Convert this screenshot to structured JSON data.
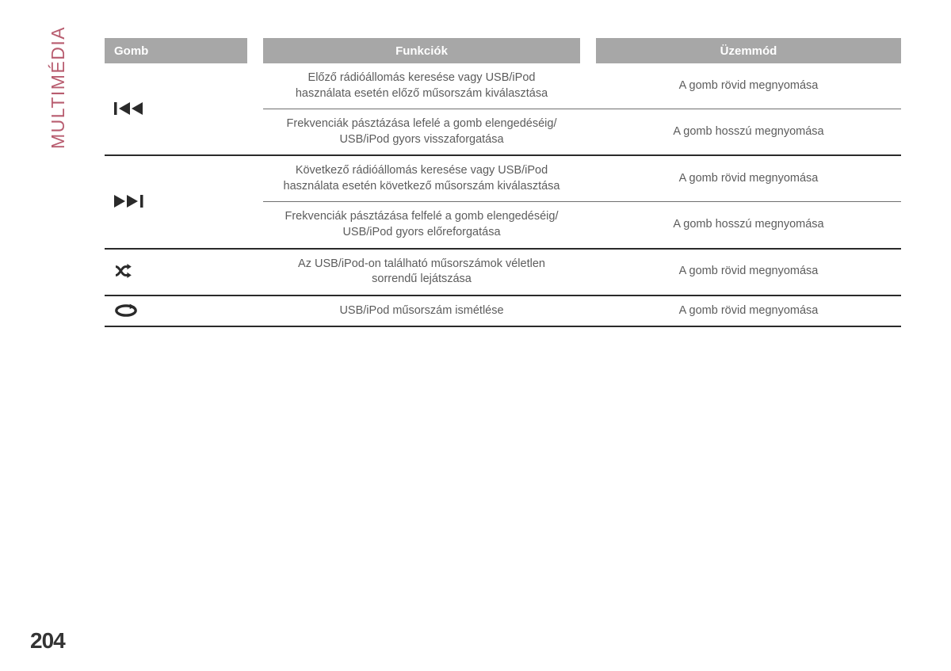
{
  "section_label": "MULTIMÉDIA",
  "page_number": "204",
  "colors": {
    "header_bg": "#a7a7a7",
    "header_text": "#ffffff",
    "section_label": "#b85c6f",
    "body_text": "#5c5c5c",
    "border_thick": "#2a2a2a",
    "border_thin": "#6f6f6f",
    "background": "#ffffff"
  },
  "headers": {
    "col1": "Gomb",
    "col2": "Funkciók",
    "col3": "Üzemmód"
  },
  "rows": [
    {
      "icon": "prev",
      "icon_rowspan": 2,
      "func_l1": "Előző rádióállomás keresése vagy USB/iPod",
      "func_l2": "használata esetén előző műsorszám kiválasztása",
      "mode": "A gomb rövid megnyomása",
      "sep_after": "thin"
    },
    {
      "icon": null,
      "func_l1": "Frekvenciák pásztázása lefelé a gomb elengedéséig/",
      "func_l2": "USB/iPod gyors visszaforgatása",
      "mode": "A gomb hosszú megnyomása",
      "sep_after": "thick"
    },
    {
      "icon": "next",
      "icon_rowspan": 2,
      "func_l1": "Következő rádióállomás keresése vagy USB/iPod",
      "func_l2": "használata esetén következő műsorszám kiválasztása",
      "mode": "A gomb rövid megnyomása",
      "sep_after": "thin"
    },
    {
      "icon": null,
      "func_l1": "Frekvenciák pásztázása felfelé a gomb elengedéséig/",
      "func_l2": "USB/iPod gyors előreforgatása",
      "mode": "A gomb hosszú megnyomása",
      "sep_after": "thick"
    },
    {
      "icon": "shuffle",
      "icon_rowspan": 1,
      "func_l1": "Az USB/iPod-on található műsorszámok véletlen",
      "func_l2": "sorrendű lejátszása",
      "mode": "A gomb rövid megnyomása",
      "sep_after": "thick"
    },
    {
      "icon": "repeat",
      "icon_rowspan": 1,
      "func_l1": "USB/iPod műsorszám ismétlése",
      "func_l2": "",
      "mode": "A gomb rövid megnyomása",
      "sep_after": "thick"
    }
  ],
  "icons": {
    "prev": {
      "label": "previous-track-icon"
    },
    "next": {
      "label": "next-track-icon"
    },
    "shuffle": {
      "label": "shuffle-icon"
    },
    "repeat": {
      "label": "repeat-icon"
    }
  }
}
